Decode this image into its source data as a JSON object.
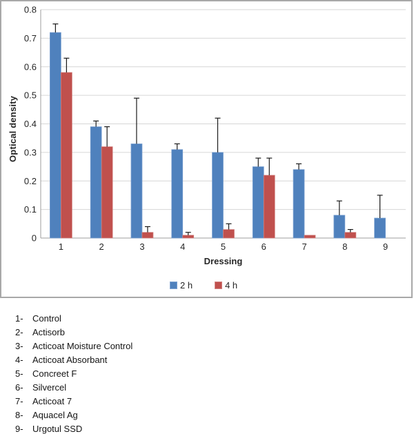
{
  "chart_data": {
    "type": "bar",
    "title": "",
    "xlabel": "Dressing",
    "ylabel": "Optical density",
    "categories": [
      "1",
      "2",
      "3",
      "4",
      "5",
      "6",
      "7",
      "8",
      "9"
    ],
    "series": [
      {
        "name": "2 h",
        "color": "#4F81BD",
        "border_color": "#7da2d2",
        "values": [
          0.72,
          0.39,
          0.33,
          0.31,
          0.3,
          0.25,
          0.24,
          0.08,
          0.07
        ],
        "errors_plus": [
          0.03,
          0.02,
          0.16,
          0.02,
          0.12,
          0.03,
          0.02,
          0.05,
          0.08
        ]
      },
      {
        "name": "4 h",
        "color": "#C0504D",
        "border_color": "#d28381",
        "values": [
          0.58,
          0.32,
          0.02,
          0.01,
          0.03,
          0.22,
          0.01,
          0.02,
          0
        ],
        "errors_plus": [
          0.05,
          0.07,
          0.02,
          0.01,
          0.02,
          0.06,
          0,
          0.01,
          0
        ]
      }
    ],
    "ylim": [
      0,
      0.8
    ],
    "ytick_labels": [
      "0",
      "0.1",
      "0.2",
      "0.3",
      "0.4",
      "0.5",
      "0.6",
      "0.7",
      "0.8"
    ],
    "grid": true,
    "legend_position": "bottom-center",
    "colors": {
      "gridline": "#d6d6d6",
      "axis_line": "#9c9c9c",
      "error_bar": "#1a1a1a",
      "tick_text": "#262626",
      "frame_border": "#a8a8a8"
    }
  },
  "dressing_key": {
    "items": [
      {
        "num": "1-",
        "label": "Control"
      },
      {
        "num": "2-",
        "label": "Actisorb"
      },
      {
        "num": "3-",
        "label": "Acticoat Moisture Control"
      },
      {
        "num": "4-",
        "label": "Acticoat Absorbant"
      },
      {
        "num": "5-",
        "label": "Concreet F"
      },
      {
        "num": "6-",
        "label": "Silvercel"
      },
      {
        "num": "7-",
        "label": "Acticoat 7"
      },
      {
        "num": "8-",
        "label": "Aquacel Ag"
      },
      {
        "num": "9-",
        "label": "Urgotul SSD"
      }
    ]
  }
}
